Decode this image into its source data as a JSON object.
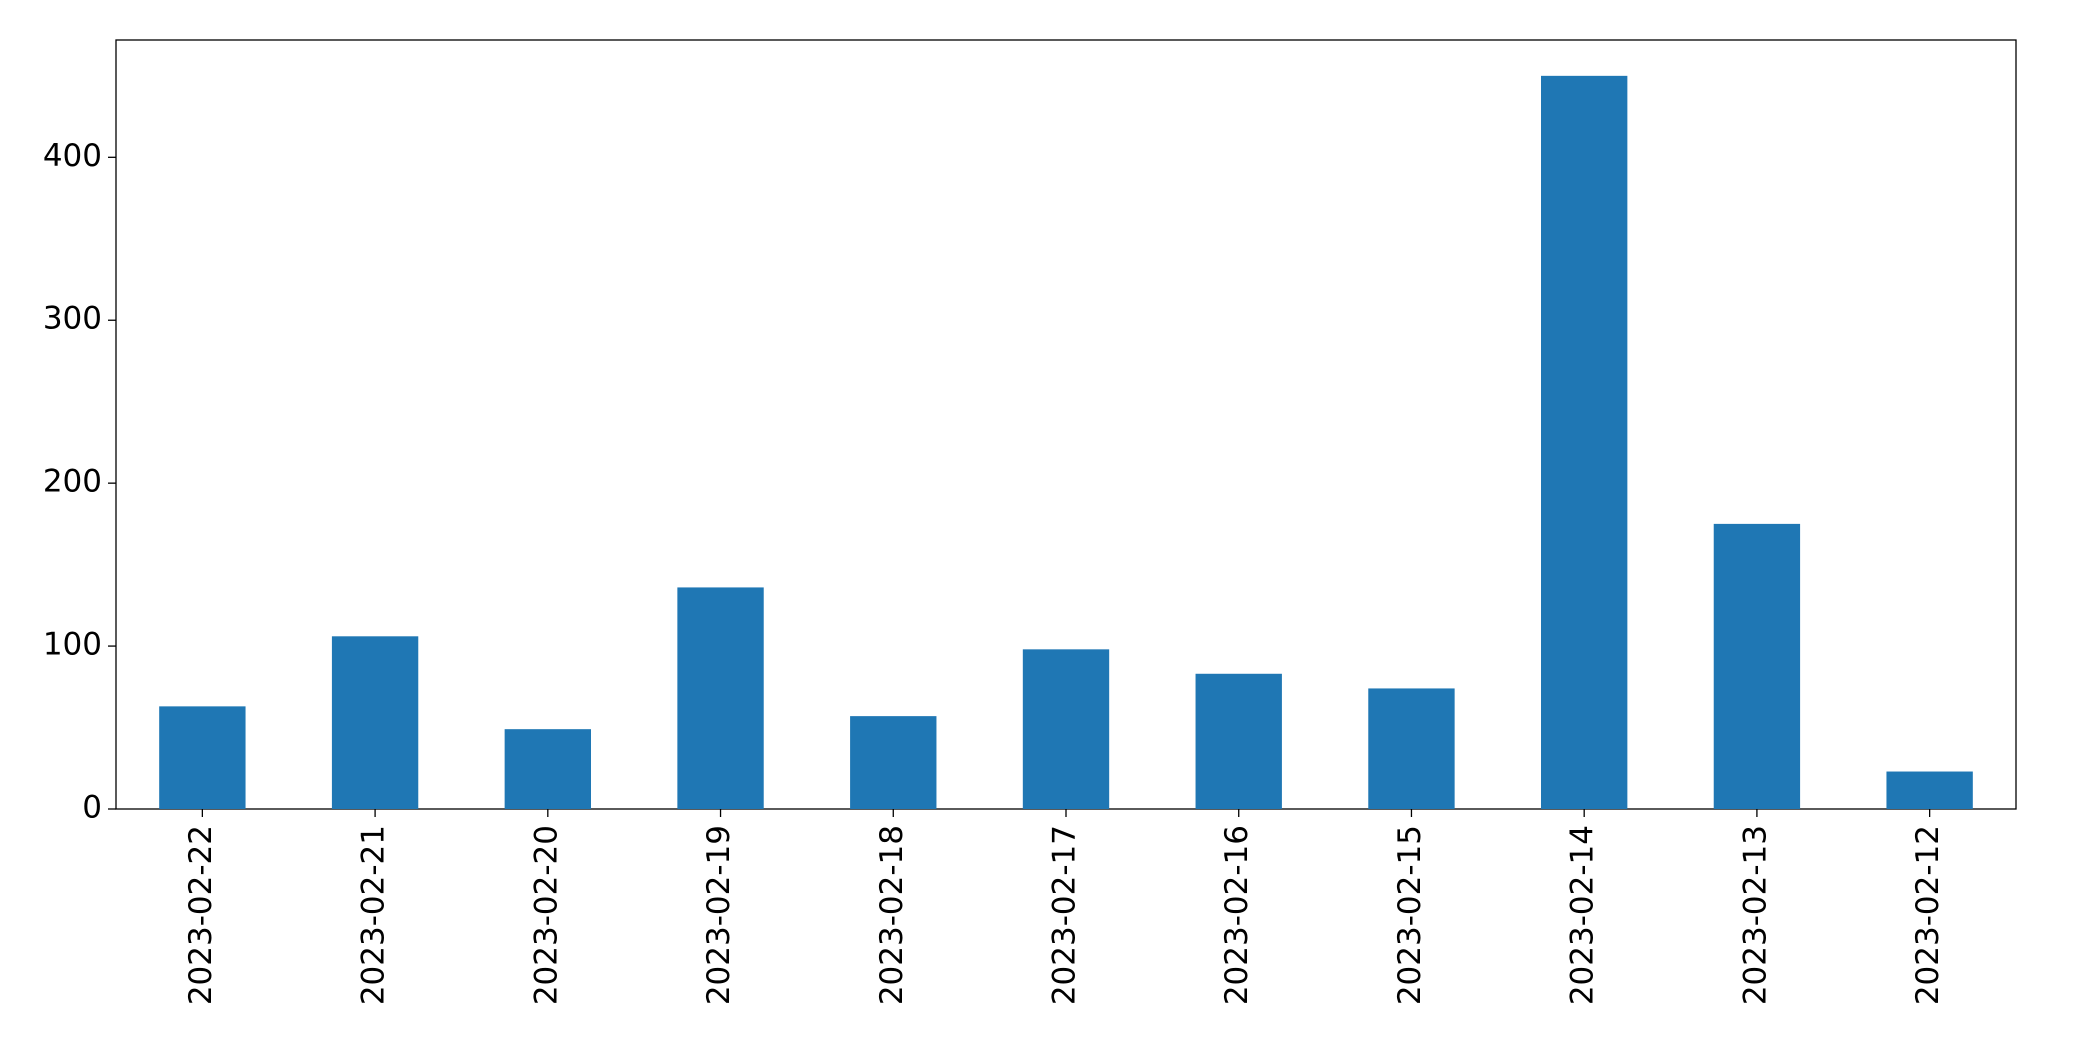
{
  "chart_data": {
    "type": "bar",
    "categories": [
      "2023-02-22",
      "2023-02-21",
      "2023-02-20",
      "2023-02-19",
      "2023-02-18",
      "2023-02-17",
      "2023-02-16",
      "2023-02-15",
      "2023-02-14",
      "2023-02-13",
      "2023-02-12"
    ],
    "values": [
      63,
      106,
      49,
      136,
      57,
      98,
      83,
      74,
      450,
      175,
      23
    ],
    "color": "#1f77b4",
    "ylim": [
      0,
      472
    ],
    "yticks": [
      0,
      100,
      200,
      300,
      400
    ],
    "grid": false
  }
}
